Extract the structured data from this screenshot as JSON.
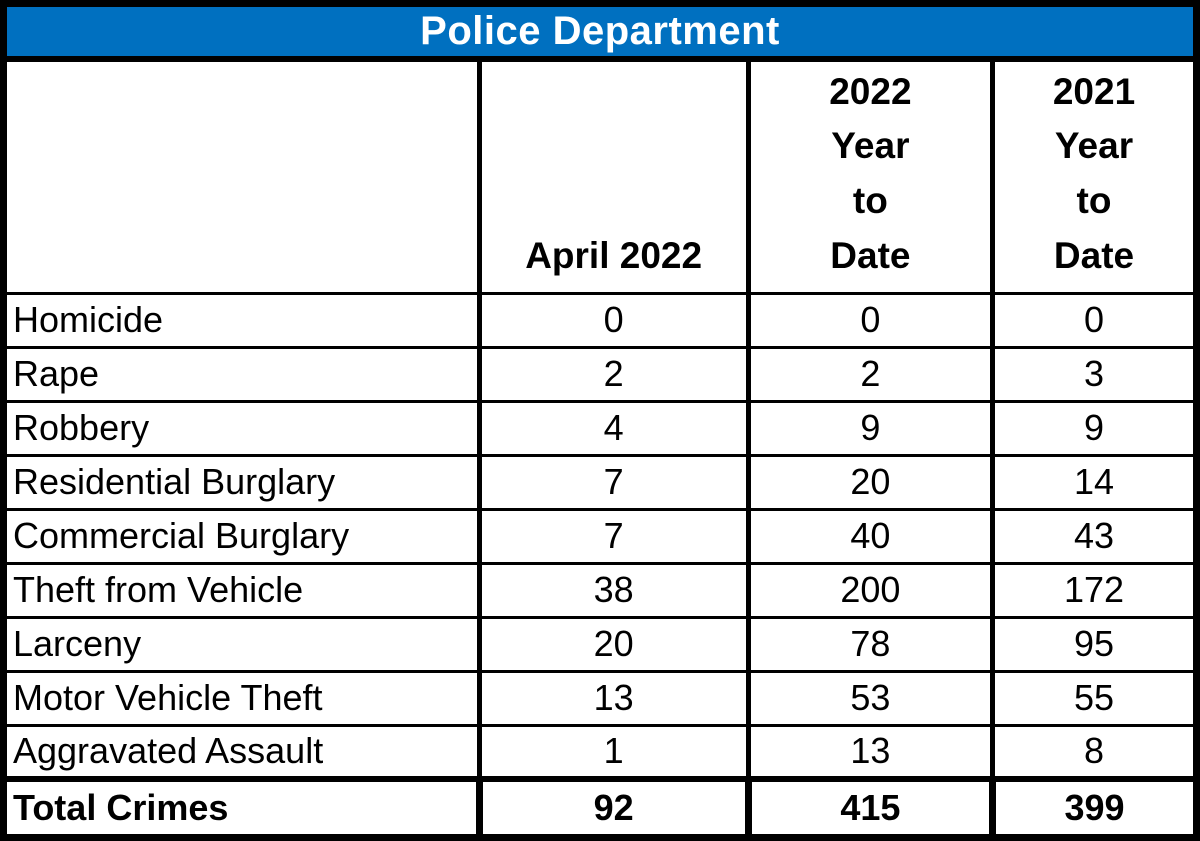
{
  "title_bar": {
    "text": "Police Department",
    "background_color": "#0070C0",
    "text_color": "#FFFFFF"
  },
  "table": {
    "columns": [
      {
        "label": ""
      },
      {
        "label": "April 2022"
      },
      {
        "label": "2022\nYear\nto\nDate"
      },
      {
        "label": "2021\nYear\nto\nDate"
      }
    ],
    "rows": [
      {
        "label": "Homicide",
        "april_2022": "0",
        "ytd_2022": "0",
        "ytd_2021": "0"
      },
      {
        "label": "Rape",
        "april_2022": "2",
        "ytd_2022": "2",
        "ytd_2021": "3"
      },
      {
        "label": "Robbery",
        "april_2022": "4",
        "ytd_2022": "9",
        "ytd_2021": "9"
      },
      {
        "label": "Residential Burglary",
        "april_2022": "7",
        "ytd_2022": "20",
        "ytd_2021": "14"
      },
      {
        "label": "Commercial Burglary",
        "april_2022": "7",
        "ytd_2022": "40",
        "ytd_2021": "43"
      },
      {
        "label": "Theft from Vehicle",
        "april_2022": "38",
        "ytd_2022": "200",
        "ytd_2021": "172"
      },
      {
        "label": "Larceny",
        "april_2022": "20",
        "ytd_2022": "78",
        "ytd_2021": "95"
      },
      {
        "label": "Motor Vehicle Theft",
        "april_2022": "13",
        "ytd_2022": "53",
        "ytd_2021": "55"
      },
      {
        "label": "Aggravated Assault",
        "april_2022": "1",
        "ytd_2022": "13",
        "ytd_2021": "8"
      }
    ],
    "total_row": {
      "label": "Total Crimes",
      "april_2022": "92",
      "ytd_2022": "415",
      "ytd_2021": "399"
    }
  }
}
